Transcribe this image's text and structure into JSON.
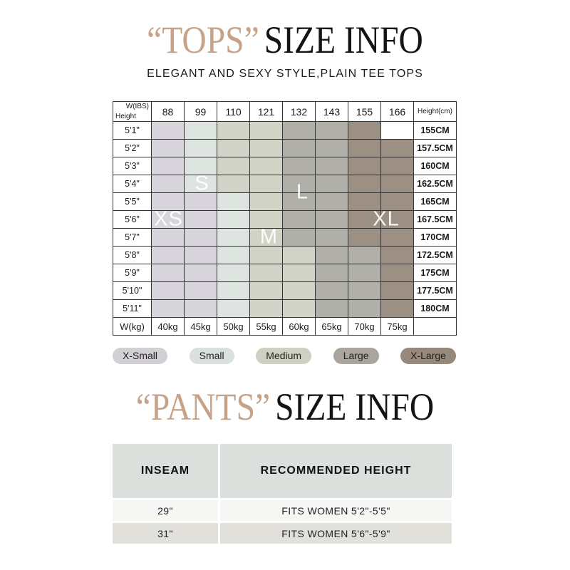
{
  "page": {
    "background": "#ffffff",
    "accent_color": "#c7a289",
    "ink_color": "#141414"
  },
  "tops": {
    "title_accent": "“TOPS”",
    "title_main": "SIZE INFO",
    "subtitle": "ELEGANT AND SEXY STYLE,PLAIN TEE TOPS",
    "table": {
      "corner": {
        "top_right": "W(IBS)",
        "bottom_left": "Height"
      },
      "weight_lbs_headers": [
        "88",
        "99",
        "110",
        "121",
        "132",
        "143",
        "155",
        "166"
      ],
      "height_cm_header": "Height(cm)",
      "rows": [
        {
          "height_ft": "5'1\"",
          "sizes": [
            "XS",
            "S",
            "M",
            "M",
            "L",
            "L",
            "XL",
            "NA"
          ],
          "height_cm": "155CM"
        },
        {
          "height_ft": "5'2\"",
          "sizes": [
            "XS",
            "S",
            "M",
            "M",
            "L",
            "L",
            "XL",
            "XL"
          ],
          "height_cm": "157.5CM"
        },
        {
          "height_ft": "5'3\"",
          "sizes": [
            "XS",
            "S",
            "M",
            "M",
            "L",
            "L",
            "XL",
            "XL"
          ],
          "height_cm": "160CM"
        },
        {
          "height_ft": "5'4\"",
          "sizes": [
            "XS",
            "S",
            "M",
            "M",
            "L",
            "L",
            "XL",
            "XL"
          ],
          "height_cm": "162.5CM"
        },
        {
          "height_ft": "5'5\"",
          "sizes": [
            "XS",
            "XS",
            "S",
            "M",
            "L",
            "L",
            "XL",
            "XL"
          ],
          "height_cm": "165CM"
        },
        {
          "height_ft": "5'6\"",
          "sizes": [
            "XS",
            "XS",
            "S",
            "M",
            "L",
            "L",
            "XL",
            "XL"
          ],
          "height_cm": "167.5CM"
        },
        {
          "height_ft": "5'7\"",
          "sizes": [
            "XS",
            "XS",
            "S",
            "M",
            "L",
            "L",
            "XL",
            "XL"
          ],
          "height_cm": "170CM"
        },
        {
          "height_ft": "5'8\"",
          "sizes": [
            "XS",
            "XS",
            "S",
            "M",
            "M",
            "L",
            "L",
            "XL"
          ],
          "height_cm": "172.5CM"
        },
        {
          "height_ft": "5'9\"",
          "sizes": [
            "XS",
            "XS",
            "S",
            "M",
            "M",
            "L",
            "L",
            "XL"
          ],
          "height_cm": "175CM"
        },
        {
          "height_ft": "5'10\"",
          "sizes": [
            "XS",
            "XS",
            "S",
            "M",
            "M",
            "L",
            "L",
            "XL"
          ],
          "height_cm": "177.5CM"
        },
        {
          "height_ft": "5'11\"",
          "sizes": [
            "XS",
            "XS",
            "S",
            "M",
            "M",
            "L",
            "L",
            "XL"
          ],
          "height_cm": "180CM"
        }
      ],
      "footer": {
        "label": "W(kg)",
        "weights_kg": [
          "40kg",
          "45kg",
          "50kg",
          "55kg",
          "60kg",
          "65kg",
          "70kg",
          "75kg"
        ]
      },
      "size_colors": {
        "XS": "#d8d6dc",
        "S": "#dee4e0",
        "M": "#d1d3c6",
        "L": "#b0b0a8",
        "XL": "#9c9084",
        "NA": "#ffffff"
      },
      "size_labels": [
        {
          "text": "XS",
          "row": 5.5,
          "col": 0.5
        },
        {
          "text": "S",
          "row": 3.5,
          "col": 1.5
        },
        {
          "text": "M",
          "row": 6.5,
          "col": 3.5
        },
        {
          "text": "L",
          "row": 4.0,
          "col": 4.5
        },
        {
          "text": "XL",
          "row": 5.5,
          "col": 7.0
        }
      ]
    },
    "legend": [
      {
        "label": "X-Small",
        "color": "#d2cfd5"
      },
      {
        "label": "Small",
        "color": "#dae1dd"
      },
      {
        "label": "Medium",
        "color": "#d0d0c2"
      },
      {
        "label": "Large",
        "color": "#a9a59d"
      },
      {
        "label": "X-Large",
        "color": "#96897b"
      }
    ]
  },
  "pants": {
    "title_accent": "“PANTS”",
    "title_main": "SIZE INFO",
    "table": {
      "headers": [
        "INSEAM",
        "RECOMMENDED HEIGHT"
      ],
      "rows": [
        {
          "inseam": "29\"",
          "recommended": "FITS WOMEN 5'2\"-5'5\""
        },
        {
          "inseam": "31\"",
          "recommended": "FITS WOMEN 5'6\"-5'9\""
        }
      ]
    }
  },
  "chart_data": [
    {
      "type": "heatmap",
      "title": "“TOPS” SIZE INFO",
      "subtitle": "ELEGANT AND SEXY STYLE,PLAIN TEE TOPS",
      "x_axis_label": "W(IBS)",
      "y_axis_label": "Height",
      "x_ticks_lbs": [
        "88",
        "99",
        "110",
        "121",
        "132",
        "143",
        "155",
        "166"
      ],
      "x_ticks_kg": [
        "40kg",
        "45kg",
        "50kg",
        "55kg",
        "60kg",
        "65kg",
        "70kg",
        "75kg"
      ],
      "y_ticks_ft": [
        "5'1\"",
        "5'2\"",
        "5'3\"",
        "5'4\"",
        "5'5\"",
        "5'6\"",
        "5'7\"",
        "5'8\"",
        "5'9\"",
        "5'10\"",
        "5'11\""
      ],
      "y_ticks_cm": [
        "155CM",
        "157.5CM",
        "160CM",
        "162.5CM",
        "165CM",
        "167.5CM",
        "170CM",
        "172.5CM",
        "175CM",
        "177.5CM",
        "180CM"
      ],
      "cells": [
        [
          "XS",
          "S",
          "M",
          "M",
          "L",
          "L",
          "XL",
          "NA"
        ],
        [
          "XS",
          "S",
          "M",
          "M",
          "L",
          "L",
          "XL",
          "XL"
        ],
        [
          "XS",
          "S",
          "M",
          "M",
          "L",
          "L",
          "XL",
          "XL"
        ],
        [
          "XS",
          "S",
          "M",
          "M",
          "L",
          "L",
          "XL",
          "XL"
        ],
        [
          "XS",
          "XS",
          "S",
          "M",
          "L",
          "L",
          "XL",
          "XL"
        ],
        [
          "XS",
          "XS",
          "S",
          "M",
          "L",
          "L",
          "XL",
          "XL"
        ],
        [
          "XS",
          "XS",
          "S",
          "M",
          "L",
          "L",
          "XL",
          "XL"
        ],
        [
          "XS",
          "XS",
          "S",
          "M",
          "M",
          "L",
          "L",
          "XL"
        ],
        [
          "XS",
          "XS",
          "S",
          "M",
          "M",
          "L",
          "L",
          "XL"
        ],
        [
          "XS",
          "XS",
          "S",
          "M",
          "M",
          "L",
          "L",
          "XL"
        ],
        [
          "XS",
          "XS",
          "S",
          "M",
          "M",
          "L",
          "L",
          "XL"
        ]
      ],
      "legend": [
        "X-Small",
        "Small",
        "Medium",
        "Large",
        "X-Large"
      ],
      "legend_position": "bottom",
      "grid": true
    },
    {
      "type": "table",
      "title": "“PANTS” SIZE INFO",
      "columns": [
        "INSEAM",
        "RECOMMENDED HEIGHT"
      ],
      "rows": [
        [
          "29\"",
          "FITS WOMEN 5'2\"-5'5\""
        ],
        [
          "31\"",
          "FITS WOMEN 5'6\"-5'9\""
        ]
      ]
    }
  ]
}
